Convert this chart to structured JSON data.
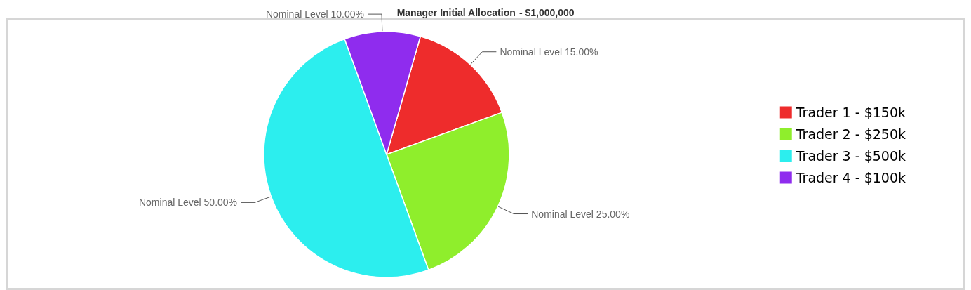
{
  "chart_data": {
    "type": "pie",
    "title": "Manager Initial Allocation",
    "subtitle": "- $1,000,000",
    "categories": [
      "Trader 1 - $150k",
      "Trader 2 - $250k",
      "Trader 3 - $500k",
      "Trader 4 - $100k"
    ],
    "values": [
      15,
      25,
      50,
      10
    ],
    "colors": [
      "#ee2c2c",
      "#8fee2c",
      "#2ceeee",
      "#8f2cee"
    ],
    "value_labels": [
      "Nominal Level 15.00%",
      "Nominal Level 25.00%",
      "Nominal Level 50.00%",
      "Nominal Level 10.00%"
    ],
    "legend": "right"
  }
}
